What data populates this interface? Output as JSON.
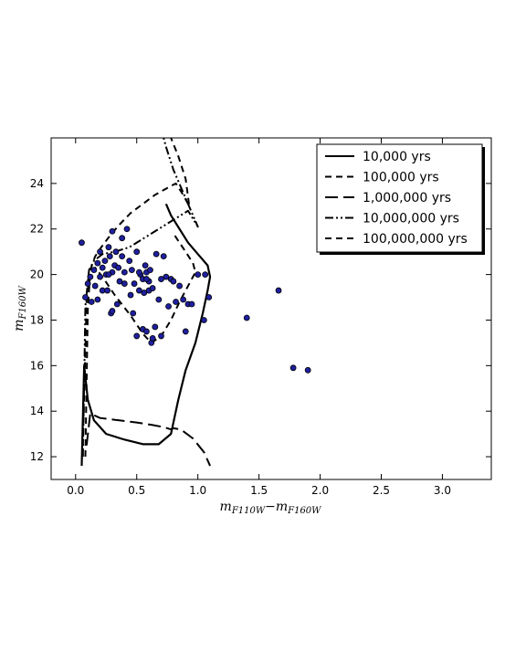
{
  "chart_data": {
    "type": "scatter",
    "xlabel_main": "m",
    "xlabel_sub": "F110W",
    "xlabel_dash": "−",
    "xlabel_main2": "m",
    "xlabel_sub2": "F160W",
    "ylabel_main": "m",
    "ylabel_sub": "F160W",
    "xlim": [
      -0.2,
      3.4
    ],
    "ylim": [
      26,
      11
    ],
    "y_inverted": true,
    "grid": false,
    "legend_position": "top-right",
    "x_ticks": [
      "0.0",
      "0.5",
      "1.0",
      "1.5",
      "2.0",
      "2.5",
      "3.0"
    ],
    "y_ticks": [
      "12",
      "14",
      "16",
      "18",
      "20",
      "22",
      "24"
    ],
    "colors": {
      "points": "#1f1fa0",
      "point_edge": "#000000",
      "lines": "#000000"
    },
    "series": [
      {
        "name": "10,000 yrs",
        "style": "solid",
        "x": [
          0.05,
          0.07,
          0.1,
          0.15,
          0.25,
          0.4,
          0.55,
          0.68,
          0.78,
          0.84,
          0.9,
          0.98,
          1.04,
          1.08,
          1.1,
          1.08,
          1.0,
          0.92,
          0.85,
          0.78,
          0.74
        ],
        "y": [
          11.6,
          16.0,
          14.5,
          13.6,
          13.0,
          12.75,
          12.55,
          12.55,
          13.0,
          14.5,
          15.8,
          17.0,
          18.3,
          19.3,
          19.9,
          20.4,
          20.9,
          21.4,
          22.0,
          22.6,
          23.1
        ]
      },
      {
        "name": "100,000 yrs",
        "style": "dashed",
        "x": [
          0.08,
          0.1,
          0.12,
          0.16,
          0.22,
          0.32,
          0.45,
          0.55,
          0.62,
          0.7,
          0.78,
          0.85,
          0.92,
          0.98,
          0.96,
          0.9,
          0.8
        ],
        "y": [
          12.0,
          18.5,
          20.1,
          20.3,
          19.9,
          19.1,
          18.2,
          17.4,
          17.0,
          17.3,
          18.0,
          18.8,
          19.5,
          20.1,
          20.5,
          21.0,
          21.8
        ]
      },
      {
        "name": "1,000,000 yrs",
        "style": "long-dash",
        "x": [
          0.09,
          0.12,
          0.2,
          0.35,
          0.5,
          0.62,
          0.72,
          0.78,
          0.8,
          0.86,
          0.96,
          1.05,
          1.1
        ],
        "y": [
          12.5,
          13.9,
          13.7,
          13.6,
          13.5,
          13.4,
          13.3,
          13.2,
          13.25,
          13.2,
          12.8,
          12.2,
          11.6
        ]
      },
      {
        "name": "10,000,000 yrs",
        "style": "dash-dot-dot",
        "x": [
          0.06,
          0.08,
          0.11,
          0.15,
          0.22,
          0.32,
          0.44,
          0.56,
          0.68,
          0.8,
          0.92,
          1.0,
          0.96,
          0.88,
          0.8,
          0.74,
          0.72
        ],
        "y": [
          12.0,
          18.6,
          20.2,
          20.6,
          20.9,
          21.0,
          21.2,
          21.6,
          22.0,
          22.4,
          22.8,
          22.1,
          22.6,
          23.6,
          24.6,
          25.6,
          26.0
        ]
      },
      {
        "name": "100,000,000 yrs",
        "style": "dashed",
        "x": [
          0.06,
          0.09,
          0.12,
          0.16,
          0.21,
          0.28,
          0.36,
          0.45,
          0.55,
          0.65,
          0.75,
          0.82,
          0.88,
          0.93,
          0.9,
          0.84,
          0.78
        ],
        "y": [
          12.5,
          18.9,
          20.2,
          20.8,
          21.2,
          21.7,
          22.2,
          22.7,
          23.1,
          23.5,
          23.8,
          24.0,
          23.5,
          23.0,
          24.2,
          25.2,
          26.0
        ]
      }
    ],
    "points": {
      "x": [
        0.05,
        0.08,
        0.1,
        0.12,
        0.13,
        0.15,
        0.16,
        0.18,
        0.2,
        0.22,
        0.24,
        0.25,
        0.27,
        0.28,
        0.3,
        0.3,
        0.32,
        0.33,
        0.35,
        0.36,
        0.38,
        0.38,
        0.4,
        0.42,
        0.44,
        0.45,
        0.46,
        0.48,
        0.5,
        0.5,
        0.52,
        0.53,
        0.55,
        0.55,
        0.56,
        0.57,
        0.58,
        0.58,
        0.6,
        0.6,
        0.61,
        0.62,
        0.63,
        0.65,
        0.66,
        0.68,
        0.7,
        0.72,
        0.74,
        0.76,
        0.78,
        0.8,
        0.82,
        0.85,
        0.88,
        0.9,
        0.92,
        0.95,
        1.0,
        1.05,
        1.06,
        1.09,
        1.4,
        1.66,
        1.78,
        1.9,
        0.18,
        0.2,
        0.22,
        0.26,
        0.29,
        0.34,
        0.4,
        0.47,
        0.52,
        0.63,
        0.7,
        0.3,
        0.27,
        0.58
      ],
      "y": [
        21.4,
        19.0,
        19.6,
        19.9,
        18.8,
        20.2,
        19.5,
        20.5,
        21.0,
        20.3,
        20.6,
        20.0,
        21.2,
        20.8,
        20.1,
        21.9,
        20.4,
        21.0,
        20.3,
        19.7,
        20.8,
        21.6,
        20.1,
        22.0,
        20.6,
        19.1,
        20.2,
        19.6,
        17.3,
        21.0,
        19.3,
        20.0,
        17.6,
        19.8,
        19.2,
        20.4,
        20.1,
        17.5,
        19.7,
        19.3,
        20.2,
        17.0,
        17.2,
        17.7,
        20.9,
        18.9,
        17.3,
        20.8,
        19.9,
        18.6,
        19.8,
        19.7,
        18.8,
        19.5,
        18.9,
        17.5,
        18.7,
        18.7,
        20.0,
        18.0,
        20.0,
        19.0,
        18.1,
        19.3,
        15.9,
        15.8,
        18.9,
        19.9,
        19.3,
        19.3,
        18.3,
        18.7,
        19.6,
        18.3,
        20.1,
        19.4,
        19.8,
        18.4,
        20.0,
        19.8
      ]
    }
  }
}
